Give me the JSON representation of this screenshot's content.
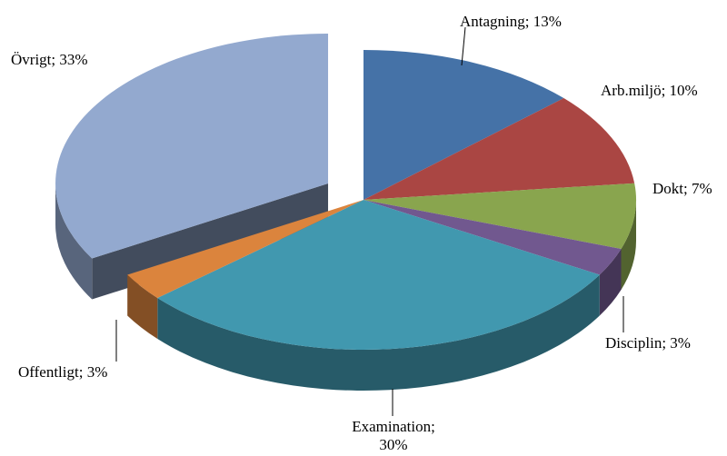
{
  "chart_data": {
    "type": "pie3d",
    "value_labels": [
      "Antagning; 13%",
      "Arb.miljö; 10%",
      "Dokt; 7%",
      "Disciplin; 3%",
      "Examination; 30%",
      "Offentligt; 3%",
      "Övrigt; 33%"
    ],
    "values": [
      13,
      10,
      7,
      3,
      30,
      3,
      33
    ],
    "colors": [
      "#4572a7",
      "#aa4643",
      "#89a54e",
      "#71588f",
      "#4198af",
      "#db843d",
      "#93a9cf"
    ],
    "exploded": [
      6
    ]
  }
}
